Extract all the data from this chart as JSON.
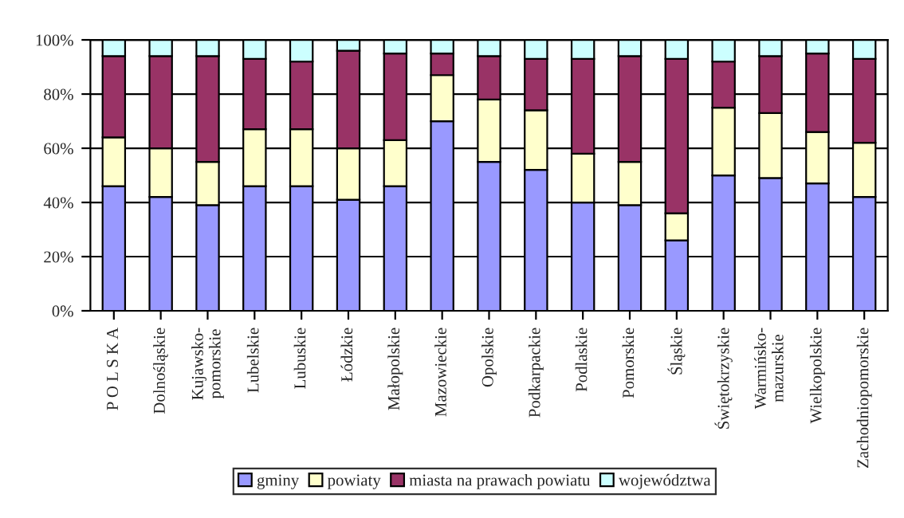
{
  "chart_data": {
    "type": "bar",
    "stacked": true,
    "categories": [
      "P O L S K A",
      "Dolnośląskie",
      "Kujawsko-\npomorskie",
      "Lubelskie",
      "Lubuskie",
      "Łódzkie",
      "Małopolskie",
      "Mazowieckie",
      "Opolskie",
      "Podkarpackie",
      "Podlaskie",
      "Pomorskie",
      "Śląskie",
      "Świętokrzyskie",
      "Warmińsko-\nmazurskie",
      "Wielkopolskie",
      "Zachodniopomorskie"
    ],
    "series": [
      {
        "name": "gminy",
        "color": "#9999ff",
        "values": [
          46,
          42,
          39,
          46,
          46,
          41,
          46,
          70,
          55,
          52,
          40,
          39,
          26,
          50,
          49,
          47,
          42
        ]
      },
      {
        "name": "powiaty",
        "color": "#ffffcc",
        "values": [
          18,
          18,
          16,
          21,
          21,
          19,
          17,
          17,
          23,
          22,
          18,
          16,
          10,
          25,
          24,
          19,
          20
        ]
      },
      {
        "name": "miasta na prawach powiatu",
        "color": "#993366",
        "values": [
          30,
          34,
          39,
          26,
          25,
          36,
          32,
          8,
          16,
          19,
          35,
          39,
          57,
          17,
          21,
          29,
          31
        ]
      },
      {
        "name": "województwa",
        "color": "#ccffff",
        "values": [
          6,
          6,
          6,
          7,
          8,
          4,
          5,
          5,
          6,
          7,
          7,
          6,
          7,
          8,
          6,
          5,
          7
        ]
      }
    ],
    "ylim": [
      0,
      100
    ],
    "yticks": [
      {
        "value": 0,
        "label": "0%"
      },
      {
        "value": 20,
        "label": "20%"
      },
      {
        "value": 40,
        "label": "40%"
      },
      {
        "value": 60,
        "label": "60%"
      },
      {
        "value": 80,
        "label": "80%"
      },
      {
        "value": 100,
        "label": "100%"
      }
    ],
    "grid": "y",
    "legend": "bottom"
  }
}
